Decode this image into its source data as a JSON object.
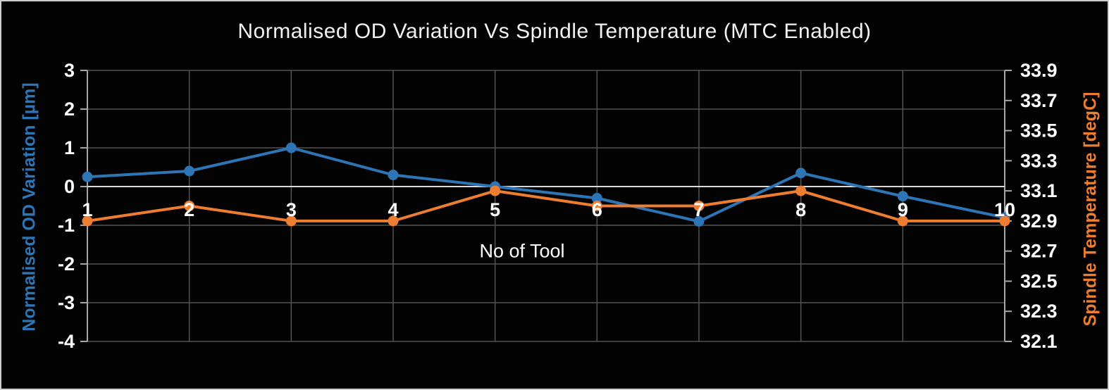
{
  "chart_data": {
    "type": "line",
    "title": "Normalised OD Variation Vs Spindle Temperature (MTC Enabled)",
    "xlabel": "No of Tool",
    "categories": [
      "1",
      "2",
      "3",
      "4",
      "5",
      "6",
      "7",
      "8",
      "9",
      "10"
    ],
    "series": [
      {
        "name": "Normalised OD Variation",
        "axis": "left",
        "color": "#2E75B6",
        "values": [
          0.25,
          0.4,
          1.0,
          0.3,
          0.0,
          -0.3,
          -0.9,
          0.35,
          -0.25,
          -0.8
        ]
      },
      {
        "name": "Spindle Temperature",
        "axis": "right",
        "color": "#ED7D31",
        "values": [
          32.9,
          33.0,
          32.9,
          32.9,
          33.1,
          33.0,
          33.0,
          33.1,
          32.9,
          32.9
        ]
      }
    ],
    "left_axis": {
      "title": "Normalised OD Variation [µm]",
      "min": -4,
      "max": 3,
      "step": 1,
      "tick_labels": [
        "3",
        "2",
        "1",
        "0",
        "-1",
        "-2",
        "-3",
        "-4"
      ],
      "color": "#2E75B6"
    },
    "right_axis": {
      "title": "Spindle Temperature [degC]",
      "min": 32.1,
      "max": 33.9,
      "step": 0.2,
      "tick_labels": [
        "33.9",
        "33.7",
        "33.5",
        "33.3",
        "33.1",
        "32.9",
        "32.7",
        "32.5",
        "32.3",
        "32.1"
      ],
      "color": "#ED7D31"
    },
    "grid": true,
    "legend": "none",
    "zero_line": true
  },
  "style": {
    "background": "#030303",
    "frame_border": "#CFCFCF",
    "text_color": "#FFFFFF",
    "title_color": "#F2F2F2",
    "gridline_color": "#525252",
    "axis_line_color": "#A6A6A6",
    "zero_line_color": "#D9D9D9",
    "tick_color": "#A6A6A6"
  }
}
